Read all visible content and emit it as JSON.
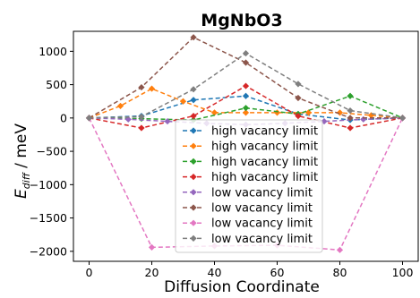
{
  "chart_data": {
    "type": "line",
    "title": "MgNbO3",
    "xlabel": "Diffusion Coordinate",
    "ylabel_main": "E",
    "ylabel_sub": "diff",
    "ylabel_unit": " / meV",
    "xlim": [
      -5,
      105
    ],
    "ylim": [
      -2150,
      1300
    ],
    "xticks": [
      0,
      20,
      40,
      60,
      80,
      100
    ],
    "yticks": [
      -2000,
      -1500,
      -1000,
      -500,
      0,
      500,
      1000
    ],
    "ytick_labels": [
      "−2000",
      "−1500",
      "−1000",
      "−500",
      "0",
      "500",
      "1000"
    ],
    "grid": false,
    "legend_position": "center",
    "series": [
      {
        "name": "high vacancy limit",
        "color": "#1f77b4",
        "x": [
          0,
          16.7,
          33.3,
          50,
          66.7,
          83.3,
          100
        ],
        "y": [
          0,
          30,
          270,
          330,
          60,
          -30,
          0
        ]
      },
      {
        "name": "high vacancy limit",
        "color": "#ff7f0e",
        "x": [
          0,
          10,
          20,
          30,
          40,
          50,
          60,
          70,
          80,
          90,
          100
        ],
        "y": [
          0,
          180,
          440,
          250,
          80,
          80,
          80,
          80,
          80,
          40,
          0
        ]
      },
      {
        "name": "high vacancy limit",
        "color": "#2ca02c",
        "x": [
          0,
          16.7,
          33.3,
          50,
          66.7,
          83.3,
          100
        ],
        "y": [
          0,
          -10,
          -30,
          150,
          60,
          330,
          0
        ]
      },
      {
        "name": "high vacancy limit",
        "color": "#d62728",
        "x": [
          0,
          16.7,
          33.3,
          50,
          66.7,
          83.3,
          100
        ],
        "y": [
          0,
          -150,
          30,
          480,
          30,
          -150,
          0
        ]
      },
      {
        "name": "low vacancy limit",
        "color": "#9467bd",
        "x": [
          0,
          12.5,
          25,
          37.5,
          50,
          62.5,
          75,
          87.5,
          100
        ],
        "y": [
          0,
          -20,
          -50,
          -80,
          -100,
          -80,
          -50,
          -20,
          0
        ]
      },
      {
        "name": "low vacancy limit",
        "color": "#8c564b",
        "x": [
          0,
          16.7,
          33.3,
          50,
          66.7,
          83.3,
          100
        ],
        "y": [
          0,
          460,
          1210,
          830,
          300,
          0,
          0
        ]
      },
      {
        "name": "low vacancy limit",
        "color": "#e377c2",
        "x": [
          0,
          20,
          40,
          60,
          80,
          100
        ],
        "y": [
          0,
          -1940,
          -1920,
          -1910,
          -1980,
          0
        ]
      },
      {
        "name": "low vacancy limit",
        "color": "#7f7f7f",
        "x": [
          0,
          16.7,
          33.3,
          50,
          66.7,
          83.3,
          100
        ],
        "y": [
          0,
          20,
          430,
          970,
          510,
          110,
          0
        ]
      }
    ]
  }
}
